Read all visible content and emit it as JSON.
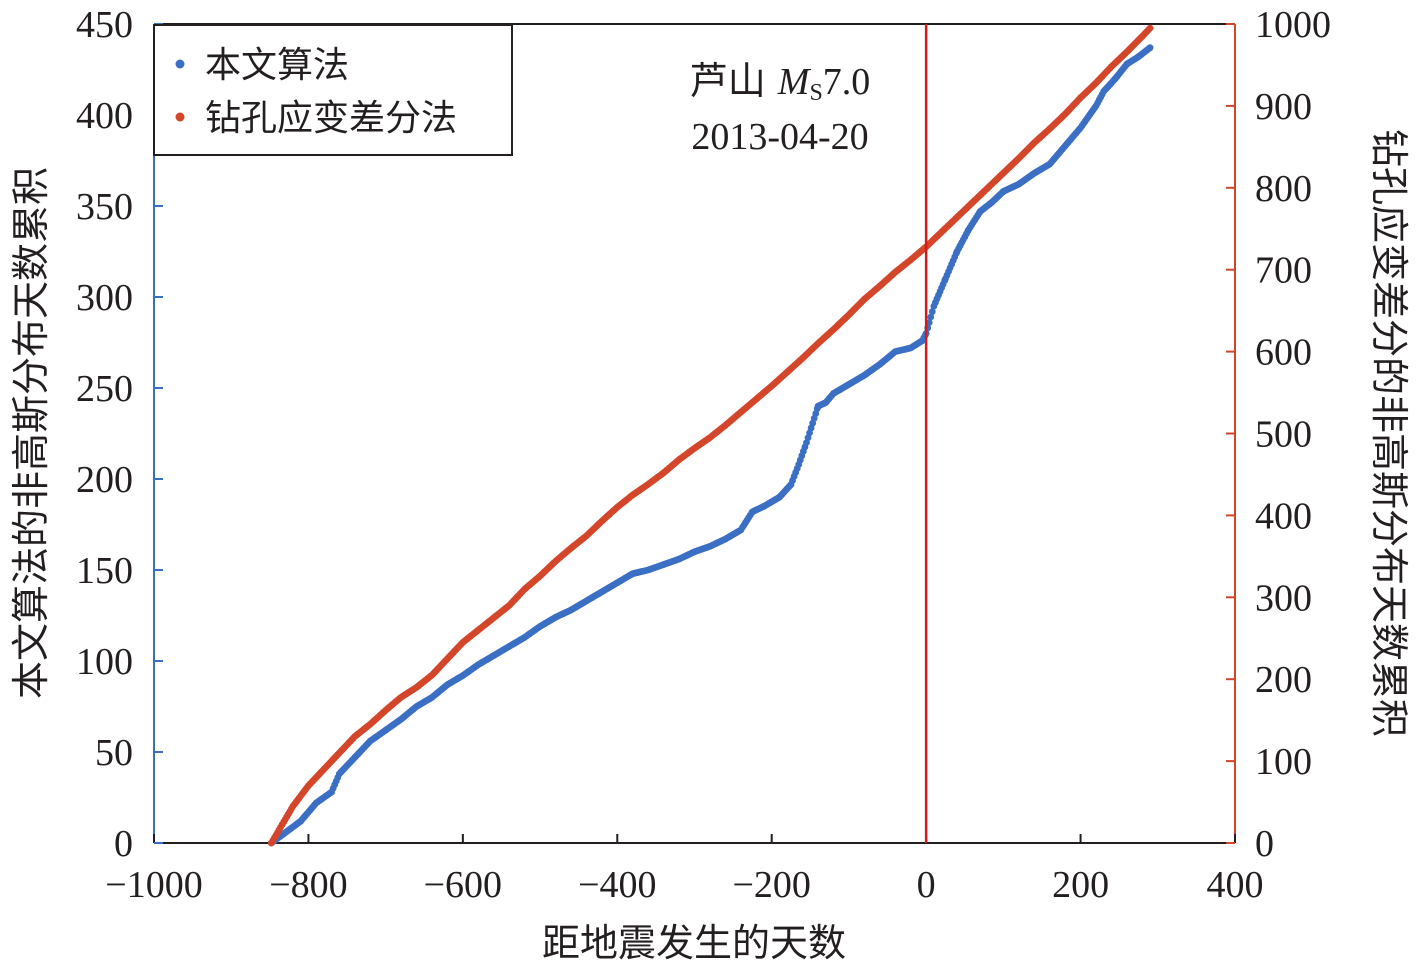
{
  "chart_data": {
    "type": "scatter",
    "xlabel": "距地震发生的天数",
    "ylabel_left": "本文算法的非高斯分布天数累积",
    "ylabel_right": "钻孔应变差分的非高斯分布天数累积",
    "xlim": [
      -1000,
      400
    ],
    "xticks": [
      "−1000",
      "−800",
      "−600",
      "−400",
      "−200",
      "0",
      "200",
      "400"
    ],
    "xtick_values": [
      -1000,
      -800,
      -600,
      -400,
      -200,
      0,
      200,
      400
    ],
    "ylim_left": [
      0,
      450
    ],
    "yticks_left": [
      "0",
      "50",
      "100",
      "150",
      "200",
      "250",
      "300",
      "350",
      "400",
      "450"
    ],
    "ylim_right": [
      0,
      1000
    ],
    "yticks_right": [
      "0",
      "100",
      "200",
      "300",
      "400",
      "500",
      "600",
      "700",
      "800",
      "900",
      "1000"
    ],
    "grid": false,
    "legend_position": "top-left",
    "vline": {
      "x": 0,
      "color": "#d7191c"
    },
    "annotation": {
      "line1_cn": "芦山 ",
      "line1_m": "M",
      "line1_sub": "S",
      "line1_val": "7.0",
      "line2": "2013-04-20"
    },
    "series": [
      {
        "name": "本文算法",
        "axis": "left",
        "color": "#3b6fc4",
        "x": [
          -848,
          -810,
          -790,
          -770,
          -760,
          -740,
          -720,
          -700,
          -680,
          -660,
          -640,
          -620,
          -600,
          -580,
          -560,
          -540,
          -520,
          -500,
          -480,
          -460,
          -440,
          -420,
          -400,
          -380,
          -360,
          -340,
          -320,
          -300,
          -280,
          -260,
          -240,
          -225,
          -210,
          -190,
          -175,
          -165,
          -155,
          -140,
          -130,
          -120,
          -100,
          -80,
          -60,
          -40,
          -20,
          -5,
          0,
          10,
          25,
          40,
          55,
          70,
          85,
          100,
          120,
          140,
          160,
          180,
          200,
          220,
          230,
          245,
          260,
          275,
          290
        ],
        "y": [
          0,
          12,
          22,
          28,
          38,
          47,
          56,
          62,
          68,
          75,
          80,
          87,
          92,
          98,
          103,
          108,
          113,
          119,
          124,
          128,
          133,
          138,
          143,
          148,
          150,
          153,
          156,
          160,
          163,
          167,
          172,
          182,
          185,
          190,
          197,
          208,
          220,
          240,
          242,
          247,
          252,
          257,
          263,
          270,
          272,
          276,
          280,
          295,
          310,
          325,
          337,
          347,
          352,
          358,
          362,
          368,
          373,
          383,
          393,
          405,
          413,
          420,
          428,
          432,
          437
        ]
      },
      {
        "name": "钻孔应变差分法",
        "axis": "right",
        "color": "#d4462a",
        "x": [
          -848,
          -820,
          -800,
          -780,
          -760,
          -740,
          -720,
          -700,
          -680,
          -660,
          -640,
          -620,
          -600,
          -580,
          -560,
          -540,
          -520,
          -500,
          -480,
          -460,
          -440,
          -420,
          -400,
          -380,
          -360,
          -340,
          -320,
          -300,
          -280,
          -260,
          -240,
          -220,
          -200,
          -180,
          -160,
          -140,
          -120,
          -100,
          -80,
          -60,
          -40,
          -20,
          0,
          20,
          40,
          60,
          80,
          100,
          120,
          140,
          160,
          180,
          200,
          220,
          240,
          260,
          280,
          290
        ],
        "y": [
          0,
          45,
          70,
          90,
          110,
          130,
          145,
          162,
          178,
          190,
          205,
          225,
          245,
          260,
          275,
          290,
          310,
          326,
          344,
          360,
          375,
          393,
          410,
          425,
          438,
          452,
          468,
          482,
          495,
          510,
          526,
          542,
          558,
          575,
          592,
          610,
          627,
          645,
          664,
          680,
          697,
          712,
          728,
          746,
          764,
          782,
          800,
          818,
          836,
          855,
          872,
          890,
          910,
          928,
          948,
          966,
          985,
          995
        ]
      }
    ]
  }
}
